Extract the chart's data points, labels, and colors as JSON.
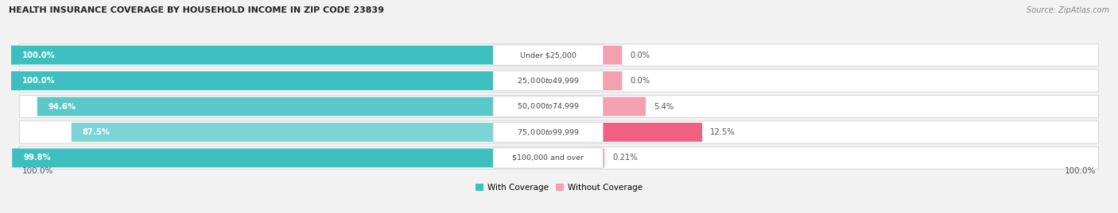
{
  "title": "HEALTH INSURANCE COVERAGE BY HOUSEHOLD INCOME IN ZIP CODE 23839",
  "source": "Source: ZipAtlas.com",
  "categories": [
    "Under $25,000",
    "$25,000 to $49,999",
    "$50,000 to $74,999",
    "$75,000 to $99,999",
    "$100,000 and over"
  ],
  "with_coverage": [
    100.0,
    100.0,
    94.6,
    87.5,
    99.8
  ],
  "without_coverage": [
    0.0,
    0.0,
    5.4,
    12.5,
    0.21
  ],
  "color_with": [
    "#3dbfbf",
    "#3dbfbf",
    "#5bc8c8",
    "#7dd4d4",
    "#3dbfbf"
  ],
  "color_without": [
    "#f4a0b0",
    "#f4a0b0",
    "#f4a0b0",
    "#f06080",
    "#f4a0b0"
  ],
  "legend_with": "With Coverage",
  "legend_without": "Without Coverage",
  "left_labels": [
    "100.0%",
    "100.0%",
    "94.6%",
    "87.5%",
    "99.8%"
  ],
  "right_labels": [
    "0.0%",
    "0.0%",
    "5.4%",
    "12.5%",
    "0.21%"
  ],
  "bottom_left": "100.0%",
  "bottom_right": "100.0%",
  "bg_color": "#f2f2f2",
  "row_colors": [
    "#e8e8e8",
    "#f5f5f5",
    "#e8e8e8",
    "#f5f5f5",
    "#e8e8e8"
  ]
}
